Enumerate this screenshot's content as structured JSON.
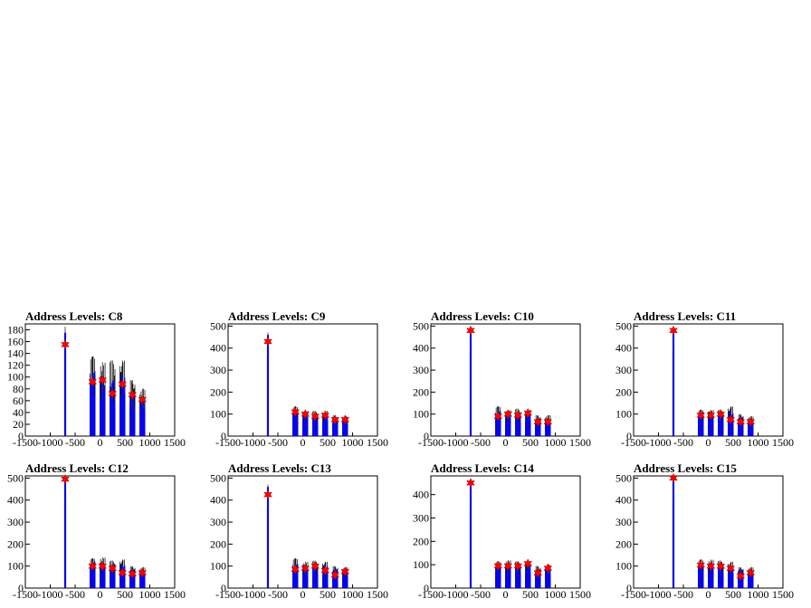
{
  "chart_data": [
    {
      "type": "bar",
      "title": "Address Levels: C8",
      "xlim": [
        -1500,
        1500
      ],
      "ylim": [
        0,
        190
      ],
      "yticks": [
        0,
        20,
        40,
        60,
        80,
        100,
        120,
        140,
        160,
        180
      ],
      "xticks": [
        -1500,
        -1000,
        -500,
        0,
        500,
        1000,
        1500
      ],
      "series": [
        {
          "name": "",
          "color": "#000000",
          "x": [
            -700,
            -150,
            50,
            250,
            450,
            650,
            850
          ],
          "values": [
            185,
            135,
            125,
            128,
            128,
            95,
            80
          ]
        },
        {
          "name": "",
          "color": "#0000ff",
          "x": [
            -700,
            -150,
            50,
            250,
            450,
            650,
            850
          ],
          "values": [
            175,
            110,
            100,
            95,
            105,
            75,
            65
          ]
        }
      ],
      "markers": {
        "color": "#ff0000",
        "x": [
          -700,
          -150,
          50,
          250,
          450,
          650,
          850
        ],
        "values": [
          155,
          92,
          95,
          72,
          88,
          70,
          62
        ]
      }
    },
    {
      "type": "bar",
      "title": "Address Levels: C9",
      "xlim": [
        -1500,
        1500
      ],
      "ylim": [
        0,
        510
      ],
      "yticks": [
        0,
        100,
        200,
        300,
        400,
        500
      ],
      "xticks": [
        -1500,
        -1000,
        -500,
        0,
        500,
        1000,
        1500
      ],
      "series": [
        {
          "name": "",
          "color": "#000000",
          "x": [
            -700,
            -150,
            50,
            250,
            450,
            650,
            850
          ],
          "values": [
            470,
            135,
            115,
            115,
            115,
            95,
            90
          ]
        },
        {
          "name": "",
          "color": "#0000ff",
          "x": [
            -700,
            -150,
            50,
            250,
            450,
            650,
            850
          ],
          "values": [
            460,
            120,
            105,
            100,
            105,
            85,
            80
          ]
        }
      ],
      "markers": {
        "color": "#ff0000",
        "x": [
          -700,
          -150,
          50,
          250,
          450,
          650,
          850
        ],
        "values": [
          430,
          110,
          100,
          90,
          95,
          75,
          75
        ]
      }
    },
    {
      "type": "bar",
      "title": "Address Levels: C10",
      "xlim": [
        -1500,
        1500
      ],
      "ylim": [
        0,
        510
      ],
      "yticks": [
        0,
        100,
        200,
        300,
        400,
        500
      ],
      "xticks": [
        -1500,
        -1000,
        -500,
        0,
        500,
        1000,
        1500
      ],
      "series": [
        {
          "name": "",
          "color": "#000000",
          "x": [
            -700,
            -150,
            50,
            250,
            450,
            650,
            850
          ],
          "values": [
            500,
            135,
            120,
            125,
            120,
            95,
            95
          ]
        },
        {
          "name": "",
          "color": "#0000ff",
          "x": [
            -700,
            -150,
            50,
            250,
            450,
            650,
            850
          ],
          "values": [
            490,
            115,
            105,
            105,
            110,
            80,
            80
          ]
        }
      ],
      "markers": {
        "color": "#ff0000",
        "x": [
          -700,
          -150,
          50,
          250,
          450,
          650,
          850
        ],
        "values": [
          480,
          90,
          100,
          95,
          105,
          65,
          65
        ]
      }
    },
    {
      "type": "bar",
      "title": "Address Levels: C11",
      "xlim": [
        -1500,
        1500
      ],
      "ylim": [
        0,
        510
      ],
      "yticks": [
        0,
        100,
        200,
        300,
        400,
        500
      ],
      "xticks": [
        -1500,
        -1000,
        -500,
        0,
        500,
        1000,
        1500
      ],
      "series": [
        {
          "name": "",
          "color": "#000000",
          "x": [
            -700,
            -150,
            50,
            250,
            450,
            650,
            850
          ],
          "values": [
            500,
            120,
            120,
            120,
            135,
            100,
            90
          ]
        },
        {
          "name": "",
          "color": "#0000ff",
          "x": [
            -700,
            -150,
            50,
            250,
            450,
            650,
            850
          ],
          "values": [
            490,
            110,
            110,
            110,
            110,
            85,
            80
          ]
        }
      ],
      "markers": {
        "color": "#ff0000",
        "x": [
          -700,
          -150,
          50,
          250,
          450,
          650,
          850
        ],
        "values": [
          480,
          95,
          95,
          100,
          75,
          65,
          65
        ]
      }
    },
    {
      "type": "bar",
      "title": "Address Levels: C12",
      "xlim": [
        -1500,
        1500
      ],
      "ylim": [
        0,
        510
      ],
      "yticks": [
        0,
        100,
        200,
        300,
        400,
        500
      ],
      "xticks": [
        -1500,
        -1000,
        -500,
        0,
        500,
        1000,
        1500
      ],
      "series": [
        {
          "name": "",
          "color": "#000000",
          "x": [
            -700,
            -150,
            50,
            250,
            450,
            650,
            850
          ],
          "values": [
            510,
            135,
            140,
            125,
            130,
            100,
            95
          ]
        },
        {
          "name": "",
          "color": "#0000ff",
          "x": [
            -700,
            -150,
            50,
            250,
            450,
            650,
            850
          ],
          "values": [
            500,
            120,
            115,
            110,
            110,
            85,
            80
          ]
        }
      ],
      "markers": {
        "color": "#ff0000",
        "x": [
          -700,
          -150,
          50,
          250,
          450,
          650,
          850
        ],
        "values": [
          495,
          100,
          100,
          90,
          70,
          65,
          70
        ]
      }
    },
    {
      "type": "bar",
      "title": "Address Levels: C13",
      "xlim": [
        -1500,
        1500
      ],
      "ylim": [
        0,
        510
      ],
      "yticks": [
        0,
        100,
        200,
        300,
        400,
        500
      ],
      "xticks": [
        -1500,
        -1000,
        -500,
        0,
        500,
        1000,
        1500
      ],
      "series": [
        {
          "name": "",
          "color": "#000000",
          "x": [
            -700,
            -150,
            50,
            250,
            450,
            650,
            850
          ],
          "values": [
            470,
            135,
            120,
            125,
            120,
            100,
            95
          ]
        },
        {
          "name": "",
          "color": "#0000ff",
          "x": [
            -700,
            -150,
            50,
            250,
            450,
            650,
            850
          ],
          "values": [
            460,
            110,
            105,
            105,
            105,
            85,
            80
          ]
        }
      ],
      "markers": {
        "color": "#ff0000",
        "x": [
          -700,
          -150,
          50,
          250,
          450,
          650,
          850
        ],
        "values": [
          425,
          85,
          90,
          100,
          80,
          60,
          75
        ]
      }
    },
    {
      "type": "bar",
      "title": "Address Levels: C14",
      "xlim": [
        -1500,
        1500
      ],
      "ylim": [
        0,
        480
      ],
      "yticks": [
        0,
        100,
        200,
        300,
        400
      ],
      "xticks": [
        -1500,
        -1000,
        -500,
        0,
        500,
        1000,
        1500
      ],
      "series": [
        {
          "name": "",
          "color": "#000000",
          "x": [
            -700,
            -150,
            50,
            250,
            450,
            650,
            850
          ],
          "values": [
            460,
            115,
            120,
            115,
            115,
            95,
            100
          ]
        },
        {
          "name": "",
          "color": "#0000ff",
          "x": [
            -700,
            -150,
            50,
            250,
            450,
            650,
            850
          ],
          "values": [
            455,
            105,
            105,
            100,
            110,
            80,
            90
          ]
        }
      ],
      "markers": {
        "color": "#ff0000",
        "x": [
          -700,
          -150,
          50,
          250,
          450,
          650,
          850
        ],
        "values": [
          450,
          95,
          95,
          95,
          105,
          65,
          85
        ]
      }
    },
    {
      "type": "bar",
      "title": "Address Levels: C15",
      "xlim": [
        -1500,
        1500
      ],
      "ylim": [
        0,
        510
      ],
      "yticks": [
        0,
        100,
        200,
        300,
        400,
        500
      ],
      "xticks": [
        -1500,
        -1000,
        -500,
        0,
        500,
        1000,
        1500
      ],
      "series": [
        {
          "name": "",
          "color": "#000000",
          "x": [
            -700,
            -150,
            50,
            250,
            450,
            650,
            850
          ],
          "values": [
            510,
            130,
            130,
            125,
            120,
            95,
            95
          ]
        },
        {
          "name": "",
          "color": "#0000ff",
          "x": [
            -700,
            -150,
            50,
            250,
            450,
            650,
            850
          ],
          "values": [
            505,
            115,
            110,
            110,
            105,
            85,
            80
          ]
        }
      ],
      "markers": {
        "color": "#ff0000",
        "x": [
          -700,
          -150,
          50,
          250,
          450,
          650,
          850
        ],
        "values": [
          500,
          105,
          100,
          100,
          90,
          55,
          70
        ]
      }
    }
  ]
}
